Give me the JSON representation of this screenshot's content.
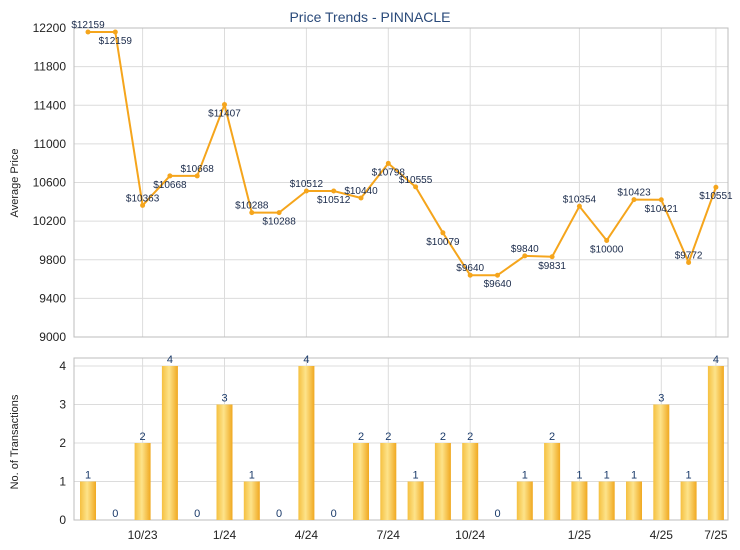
{
  "chart_data": [
    {
      "type": "line",
      "title": "Price Trends - PINNACLE",
      "ylabel": "Average Price",
      "ylim": [
        9000,
        12200
      ],
      "yticks": [
        9000,
        9400,
        9800,
        10200,
        10600,
        11000,
        11400,
        11800,
        12200
      ],
      "line_color": "#f5a51c",
      "grid": true,
      "values": [
        12159,
        12159,
        10363,
        10668,
        10668,
        11407,
        10288,
        10288,
        10512,
        10512,
        10440,
        10798,
        10555,
        10079,
        9640,
        9640,
        9840,
        9831,
        10354,
        10000,
        10423,
        10421,
        9772,
        10551
      ],
      "labels": [
        "$12159",
        "$12159",
        "$10363",
        "$10668",
        "$10668",
        "$11407",
        "$10288",
        "$10288",
        "$10512",
        "$10512",
        "$10440",
        "$10798",
        "$10555",
        "$10079",
        "$9640",
        "$9640",
        "$9840",
        "$9831",
        "$10354",
        "$10000",
        "$10423",
        "$10421",
        "$9772",
        "$10551"
      ]
    },
    {
      "type": "bar",
      "ylabel": "No. of Transactions",
      "ylim": [
        0,
        4
      ],
      "yticks": [
        0,
        1,
        2,
        3,
        4
      ],
      "bar_color": "#f0a820",
      "grid": true,
      "categories": [
        "",
        "",
        "10/23",
        "",
        "",
        "1/24",
        "",
        "",
        "4/24",
        "",
        "",
        "7/24",
        "",
        "",
        "10/24",
        "",
        "",
        "",
        "1/25",
        "",
        "",
        "4/25",
        "",
        "7/25"
      ],
      "values": [
        1,
        0,
        2,
        4,
        0,
        3,
        1,
        0,
        4,
        0,
        2,
        2,
        1,
        2,
        2,
        0,
        1,
        2,
        1,
        1,
        1,
        3,
        1,
        4
      ]
    }
  ]
}
